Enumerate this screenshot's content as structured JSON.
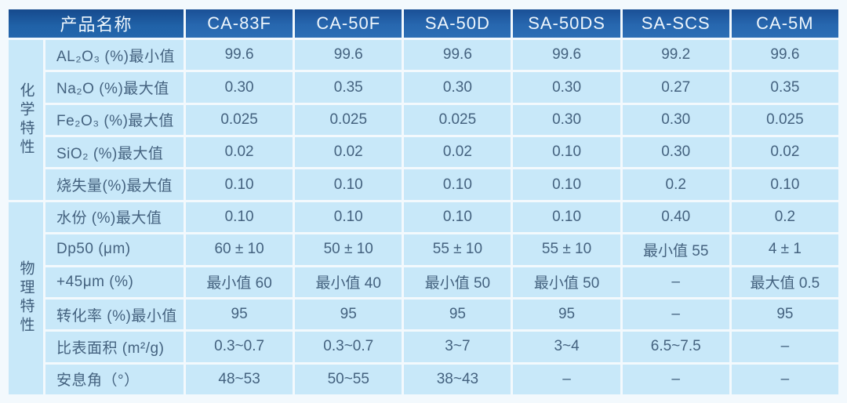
{
  "colors": {
    "header_bg": "#2565ab",
    "header_bg_dark": "#174b8e",
    "header_text": "#eef6fc",
    "cell_bg": "#c8e8f9",
    "cell_text": "#44627f",
    "page_bg": "#f3f9fd",
    "separator": "#f3f9fd"
  },
  "chart_data": {
    "type": "table",
    "title": "",
    "corner_label": "产品名称",
    "columns": [
      "CA-83F",
      "CA-50F",
      "SA-50D",
      "SA-50DS",
      "SA-SCS",
      "CA-5M"
    ],
    "groups": [
      {
        "name": "化学特性",
        "rows": [
          {
            "label": "AL₂O₃ (%)最小值",
            "values": [
              "99.6",
              "99.6",
              "99.6",
              "99.6",
              "99.2",
              "99.6"
            ]
          },
          {
            "label": "Na₂O (%)最大值",
            "values": [
              "0.30",
              "0.35",
              "0.30",
              "0.30",
              "0.27",
              "0.35"
            ]
          },
          {
            "label": "Fe₂O₃ (%)最大值",
            "values": [
              "0.025",
              "0.025",
              "0.025",
              "0.30",
              "0.30",
              "0.025"
            ]
          },
          {
            "label": "SiO₂ (%)最大值",
            "values": [
              "0.02",
              "0.02",
              "0.02",
              "0.10",
              "0.30",
              "0.02"
            ]
          },
          {
            "label": "烧失量(%)最大值",
            "values": [
              "0.10",
              "0.10",
              "0.10",
              "0.10",
              "0.2",
              "0.10"
            ]
          }
        ]
      },
      {
        "name": "物理特性",
        "rows": [
          {
            "label": "水份 (%)最大值",
            "values": [
              "0.10",
              "0.10",
              "0.10",
              "0.10",
              "0.40",
              "0.2"
            ]
          },
          {
            "label": "Dp50 (μm)",
            "values": [
              "60 ± 10",
              "50 ± 10",
              "55 ± 10",
              "55 ± 10",
              "最小值 55",
              "4 ± 1"
            ]
          },
          {
            "label": "+45μm (%)",
            "values": [
              "最小值 60",
              "最小值 40",
              "最小值 50",
              "最小值 50",
              "–",
              "最大值 0.5"
            ]
          },
          {
            "label": "转化率 (%)最小值",
            "values": [
              "95",
              "95",
              "95",
              "95",
              "–",
              "95"
            ]
          },
          {
            "label": "比表面积 (m²/g)",
            "values": [
              "0.3~0.7",
              "0.3~0.7",
              "3~7",
              "3~4",
              "6.5~7.5",
              "–"
            ]
          },
          {
            "label": "安息角（°）",
            "values": [
              "48~53",
              "50~55",
              "38~43",
              "–",
              "–",
              "–"
            ]
          }
        ]
      }
    ]
  }
}
